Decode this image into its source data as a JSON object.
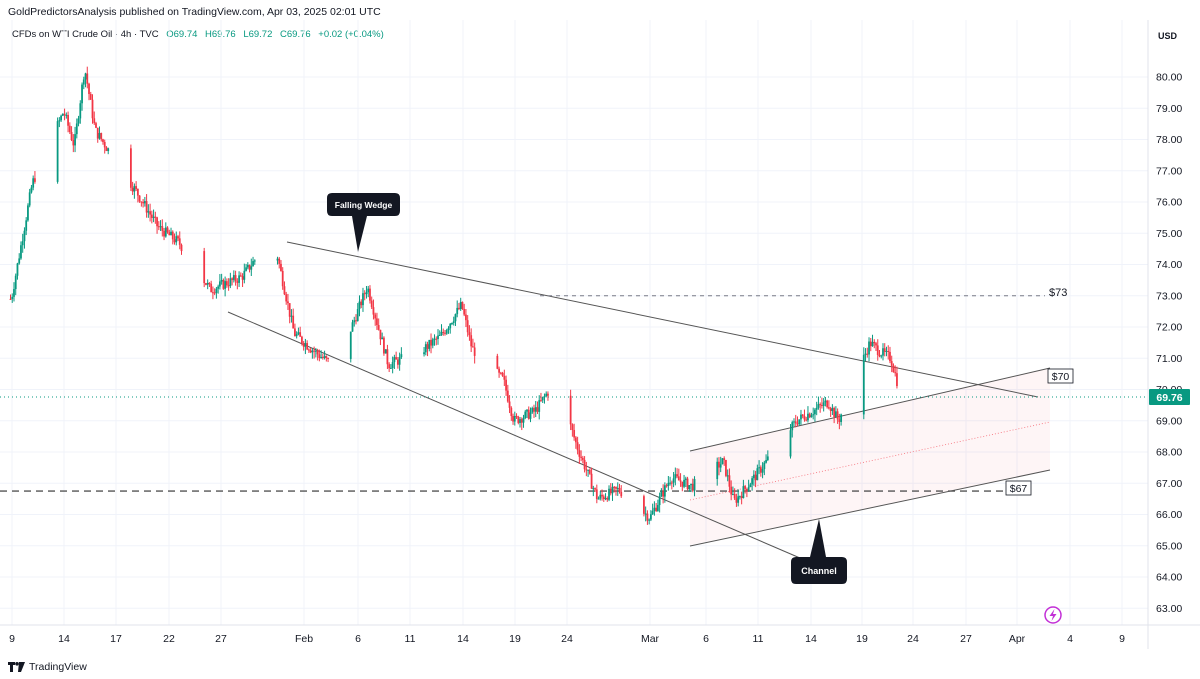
{
  "header": {
    "published": "GoldPredictorsAnalysis published on TradingView.com, Apr 03, 2025 02:01 UTC"
  },
  "legend": {
    "symbol": "CFDs on WTI Crude Oil · 4h · TVC",
    "open": "O69.74",
    "high": "H69.76",
    "low": "L69.72",
    "close": "C69.76",
    "change": "+0.02 (+0.04%)"
  },
  "axis": {
    "currency": "USD",
    "current_price": "69.76"
  },
  "annotations": {
    "falling_wedge": "Falling Wedge",
    "channel": "Channel",
    "level_73": "$73",
    "level_70": "$70",
    "level_67": "$67"
  },
  "footer": {
    "brand": "TradingView"
  },
  "colors": {
    "up": "#089981",
    "down": "#f23645",
    "price_tag": "#089981",
    "grid": "#f0f3fa",
    "axis_line": "#e0e3eb",
    "annotation_bg": "#131722"
  },
  "chart_data": {
    "type": "candlestick",
    "timeframe": "4h",
    "y_ticks": [
      80.0,
      79.0,
      78.0,
      77.0,
      76.0,
      75.0,
      74.0,
      73.0,
      72.0,
      71.0,
      70.0,
      69.0,
      68.0,
      67.0,
      66.0,
      65.0,
      64.0,
      63.0
    ],
    "ylim": [
      62.5,
      81.5
    ],
    "x_ticks": [
      "9",
      "14",
      "17",
      "22",
      "27",
      "Feb",
      "6",
      "11",
      "14",
      "19",
      "24",
      "Mar",
      "6",
      "11",
      "14",
      "19",
      "24",
      "27",
      "Apr",
      "4",
      "9"
    ],
    "horizontal_levels": [
      73.0,
      66.75,
      69.76
    ],
    "price_path": [
      {
        "date": "Jan 8",
        "price": 72.9
      },
      {
        "date": "Jan 10",
        "price": 76.6
      },
      {
        "date": "Jan 13",
        "price": 78.9
      },
      {
        "date": "Jan 14",
        "price": 77.8
      },
      {
        "date": "Jan 15",
        "price": 80.3
      },
      {
        "date": "Jan 16",
        "price": 78.3
      },
      {
        "date": "Jan 20",
        "price": 76.3
      },
      {
        "date": "Jan 22",
        "price": 75.2
      },
      {
        "date": "Jan 24",
        "price": 74.7
      },
      {
        "date": "Jan 27",
        "price": 73.2
      },
      {
        "date": "Jan 30",
        "price": 73.6
      },
      {
        "date": "Feb 2",
        "price": 74.9
      },
      {
        "date": "Feb 4",
        "price": 71.8
      },
      {
        "date": "Feb 6",
        "price": 71.2
      },
      {
        "date": "Feb 8",
        "price": 70.7
      },
      {
        "date": "Feb 11",
        "price": 73.3
      },
      {
        "date": "Feb 13",
        "price": 70.8
      },
      {
        "date": "Feb 16",
        "price": 71.2
      },
      {
        "date": "Feb 18",
        "price": 71.7
      },
      {
        "date": "Feb 20",
        "price": 72.7
      },
      {
        "date": "Feb 21",
        "price": 71.3
      },
      {
        "date": "Feb 24",
        "price": 70.3
      },
      {
        "date": "Feb 25",
        "price": 69.0
      },
      {
        "date": "Feb 27",
        "price": 69.3
      },
      {
        "date": "Mar 1",
        "price": 70.3
      },
      {
        "date": "Mar 3",
        "price": 68.2
      },
      {
        "date": "Mar 5",
        "price": 66.5
      },
      {
        "date": "Mar 7",
        "price": 66.8
      },
      {
        "date": "Mar 10",
        "price": 65.9
      },
      {
        "date": "Mar 12",
        "price": 67.2
      },
      {
        "date": "Mar 14",
        "price": 66.9
      },
      {
        "date": "Mar 17",
        "price": 67.7
      },
      {
        "date": "Mar 18",
        "price": 66.4
      },
      {
        "date": "Mar 20",
        "price": 67.2
      },
      {
        "date": "Mar 24",
        "price": 69.0
      },
      {
        "date": "Mar 27",
        "price": 69.6
      },
      {
        "date": "Mar 28",
        "price": 69.0
      },
      {
        "date": "Mar 31",
        "price": 71.5
      },
      {
        "date": "Apr 1",
        "price": 71.2
      },
      {
        "date": "Apr 2",
        "price": 71.0
      },
      {
        "date": "Apr 3",
        "price": 69.76
      }
    ]
  }
}
